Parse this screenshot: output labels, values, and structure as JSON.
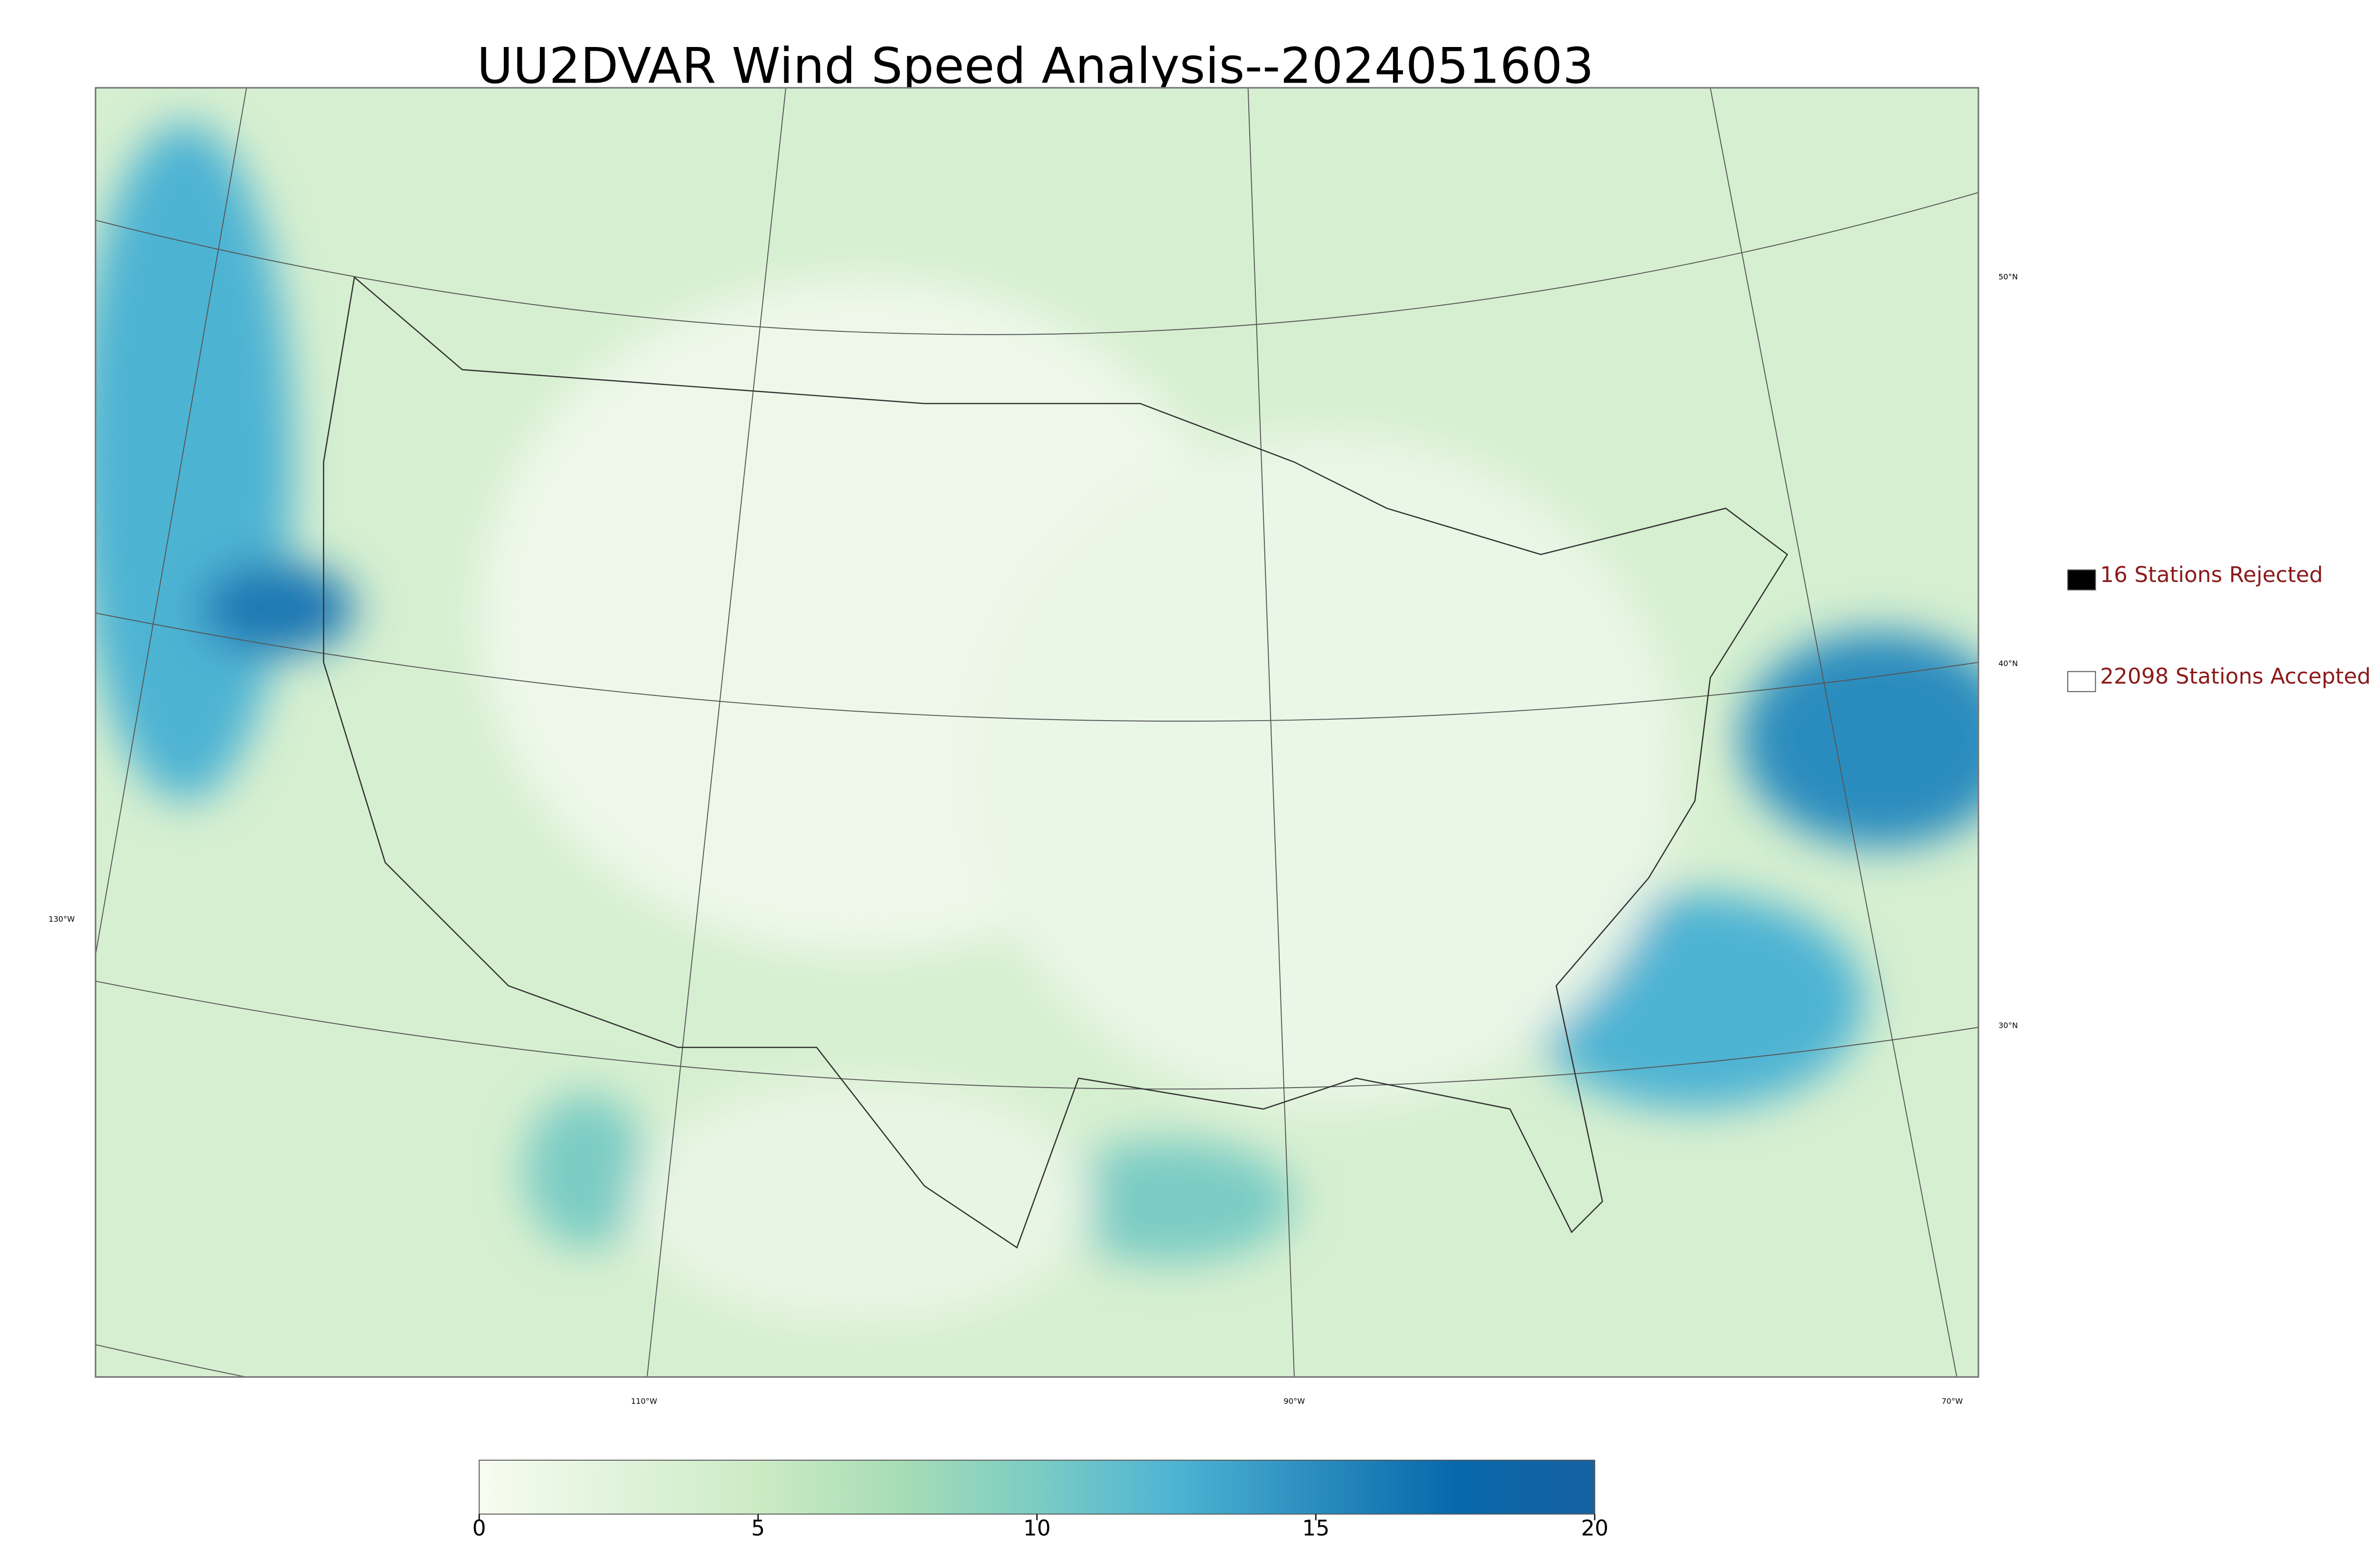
{
  "header": {
    "title": "UU2DVAR Wind Speed Analysis--2024051603"
  },
  "map": {
    "lat_labels": [
      "50°N",
      "40°N",
      "30°N"
    ],
    "lon_labels": [
      "130°W",
      "110°W",
      "90°W",
      "70°W"
    ]
  },
  "legend": {
    "entries": [
      "16 Stations Rejected",
      "22098 Stations Accepted"
    ],
    "colors": [
      "#000000",
      "#ffffff"
    ],
    "text_color": "#8b1a1a"
  },
  "colorbar": {
    "lim": [
      0,
      20
    ],
    "ticks": [
      0,
      5,
      10,
      15,
      20
    ],
    "colors": [
      "#f7fcf0",
      "#e0f3db",
      "#ccebc5",
      "#a8ddb5",
      "#7bccc4",
      "#4eb3d3",
      "#2b8cbe",
      "#0868ac",
      "#1661a0"
    ]
  }
}
